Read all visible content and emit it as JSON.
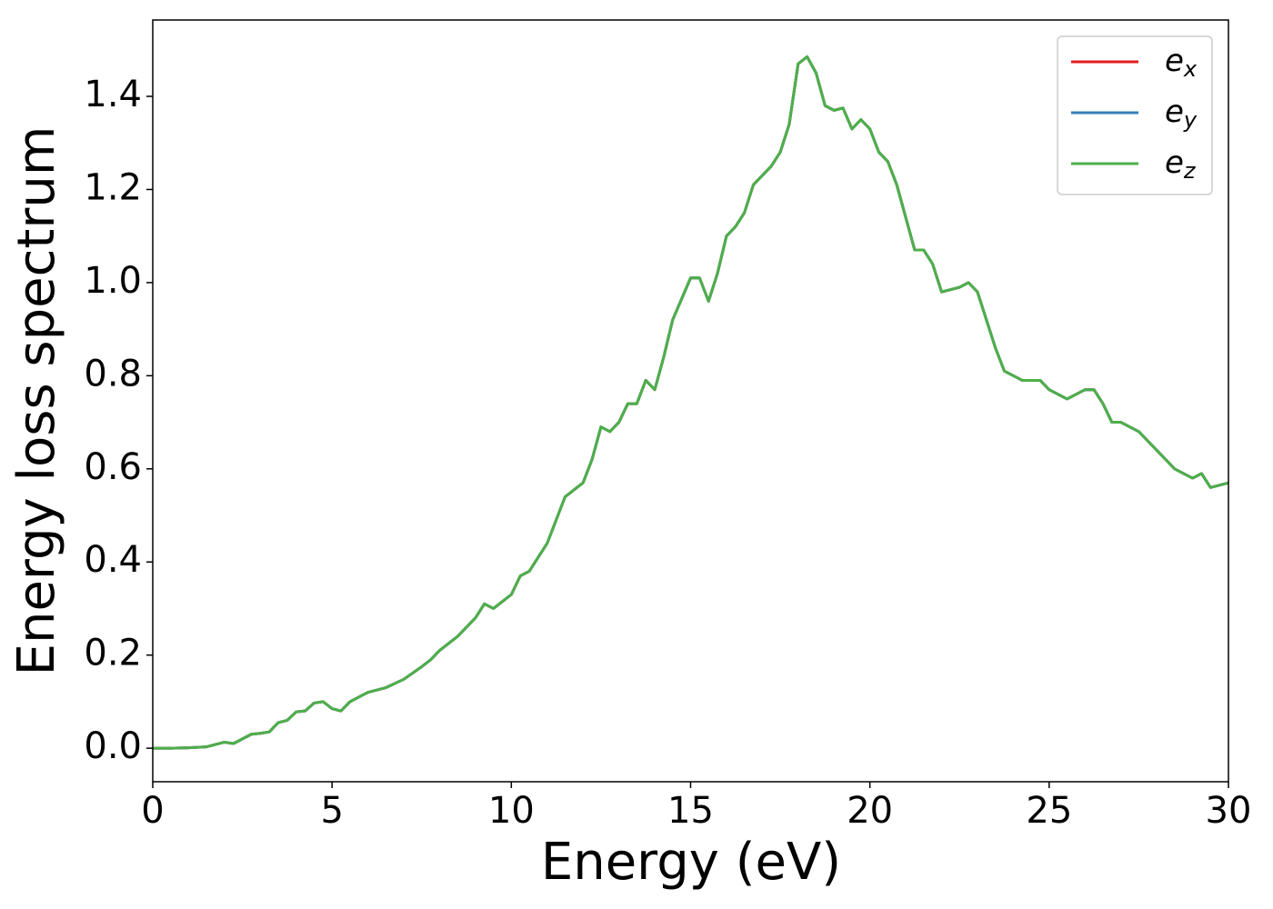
{
  "chart_data": {
    "type": "line",
    "xlabel": "Energy (eV)",
    "ylabel": "Energy loss spectrum",
    "x": [
      0,
      0.5,
      1,
      1.5,
      2,
      2.25,
      2.5,
      2.75,
      3,
      3.25,
      3.5,
      3.75,
      4,
      4.25,
      4.5,
      4.75,
      5,
      5.25,
      5.5,
      6,
      6.5,
      7,
      7.5,
      7.75,
      8,
      8.5,
      9,
      9.25,
      9.5,
      10,
      10.25,
      10.5,
      11,
      11.5,
      12,
      12.25,
      12.5,
      12.75,
      13,
      13.25,
      13.5,
      13.75,
      14,
      14.25,
      14.5,
      15,
      15.25,
      15.5,
      15.75,
      16,
      16.25,
      16.5,
      16.75,
      17,
      17.25,
      17.5,
      17.75,
      18,
      18.25,
      18.5,
      18.75,
      19,
      19.25,
      19.5,
      19.75,
      20,
      20.25,
      20.5,
      20.75,
      21,
      21.25,
      21.5,
      21.75,
      22,
      22.5,
      22.75,
      23,
      23.5,
      23.75,
      24,
      24.25,
      24.75,
      25,
      25.5,
      26,
      26.25,
      26.5,
      26.75,
      27,
      27.5,
      28,
      28.5,
      29,
      29.25,
      29.5,
      30
    ],
    "series": [
      {
        "name": "ex",
        "color": "#e41a1c",
        "values": [
          0,
          0,
          0.001,
          0.003,
          0.013,
          0.01,
          0.02,
          0.03,
          0.032,
          0.035,
          0.055,
          0.06,
          0.078,
          0.08,
          0.097,
          0.1,
          0.085,
          0.08,
          0.1,
          0.12,
          0.13,
          0.148,
          0.175,
          0.19,
          0.21,
          0.24,
          0.28,
          0.31,
          0.3,
          0.33,
          0.37,
          0.38,
          0.44,
          0.54,
          0.57,
          0.62,
          0.69,
          0.68,
          0.7,
          0.74,
          0.74,
          0.79,
          0.77,
          0.84,
          0.92,
          1.01,
          1.01,
          0.96,
          1.02,
          1.1,
          1.12,
          1.15,
          1.21,
          1.23,
          1.25,
          1.28,
          1.34,
          1.47,
          1.485,
          1.45,
          1.38,
          1.37,
          1.375,
          1.33,
          1.35,
          1.33,
          1.28,
          1.26,
          1.21,
          1.14,
          1.07,
          1.07,
          1.04,
          0.98,
          0.99,
          1.0,
          0.98,
          0.86,
          0.81,
          0.8,
          0.79,
          0.79,
          0.77,
          0.75,
          0.77,
          0.77,
          0.74,
          0.7,
          0.7,
          0.68,
          0.64,
          0.6,
          0.58,
          0.59,
          0.56,
          0.57
        ]
      },
      {
        "name": "ey",
        "color": "#377eb8",
        "values": [
          0,
          0,
          0.001,
          0.003,
          0.013,
          0.01,
          0.02,
          0.03,
          0.032,
          0.035,
          0.055,
          0.06,
          0.078,
          0.08,
          0.097,
          0.1,
          0.085,
          0.08,
          0.1,
          0.12,
          0.13,
          0.148,
          0.175,
          0.19,
          0.21,
          0.24,
          0.28,
          0.31,
          0.3,
          0.33,
          0.37,
          0.38,
          0.44,
          0.54,
          0.57,
          0.62,
          0.69,
          0.68,
          0.7,
          0.74,
          0.74,
          0.79,
          0.77,
          0.84,
          0.92,
          1.01,
          1.01,
          0.96,
          1.02,
          1.1,
          1.12,
          1.15,
          1.21,
          1.23,
          1.25,
          1.28,
          1.34,
          1.47,
          1.485,
          1.45,
          1.38,
          1.37,
          1.375,
          1.33,
          1.35,
          1.33,
          1.28,
          1.26,
          1.21,
          1.14,
          1.07,
          1.07,
          1.04,
          0.98,
          0.99,
          1.0,
          0.98,
          0.86,
          0.81,
          0.8,
          0.79,
          0.79,
          0.77,
          0.75,
          0.77,
          0.77,
          0.74,
          0.7,
          0.7,
          0.68,
          0.64,
          0.6,
          0.58,
          0.59,
          0.56,
          0.57
        ]
      },
      {
        "name": "ez",
        "color": "#4daf4a",
        "values": [
          0,
          0,
          0.001,
          0.003,
          0.013,
          0.01,
          0.02,
          0.03,
          0.032,
          0.035,
          0.055,
          0.06,
          0.078,
          0.08,
          0.097,
          0.1,
          0.085,
          0.08,
          0.1,
          0.12,
          0.13,
          0.148,
          0.175,
          0.19,
          0.21,
          0.24,
          0.28,
          0.31,
          0.3,
          0.33,
          0.37,
          0.38,
          0.44,
          0.54,
          0.57,
          0.62,
          0.69,
          0.68,
          0.7,
          0.74,
          0.74,
          0.79,
          0.77,
          0.84,
          0.92,
          1.01,
          1.01,
          0.96,
          1.02,
          1.1,
          1.12,
          1.15,
          1.21,
          1.23,
          1.25,
          1.28,
          1.34,
          1.47,
          1.485,
          1.45,
          1.38,
          1.37,
          1.375,
          1.33,
          1.35,
          1.33,
          1.28,
          1.26,
          1.21,
          1.14,
          1.07,
          1.07,
          1.04,
          0.98,
          0.99,
          1.0,
          0.98,
          0.86,
          0.81,
          0.8,
          0.79,
          0.79,
          0.77,
          0.75,
          0.77,
          0.77,
          0.74,
          0.7,
          0.7,
          0.68,
          0.64,
          0.6,
          0.58,
          0.59,
          0.56,
          0.57
        ]
      }
    ],
    "xlim": [
      0,
      30
    ],
    "xticks": [
      0,
      5,
      10,
      15,
      20,
      25,
      30
    ],
    "ylim": [
      -0.072,
      1.564
    ],
    "yticks": [
      {
        "value": 0,
        "label": "0.0"
      },
      0.2,
      0.4,
      0.6,
      0.8,
      {
        "value": 1,
        "label": "1.0"
      },
      1.2,
      1.4
    ],
    "grid": false,
    "legend": "upper right"
  }
}
